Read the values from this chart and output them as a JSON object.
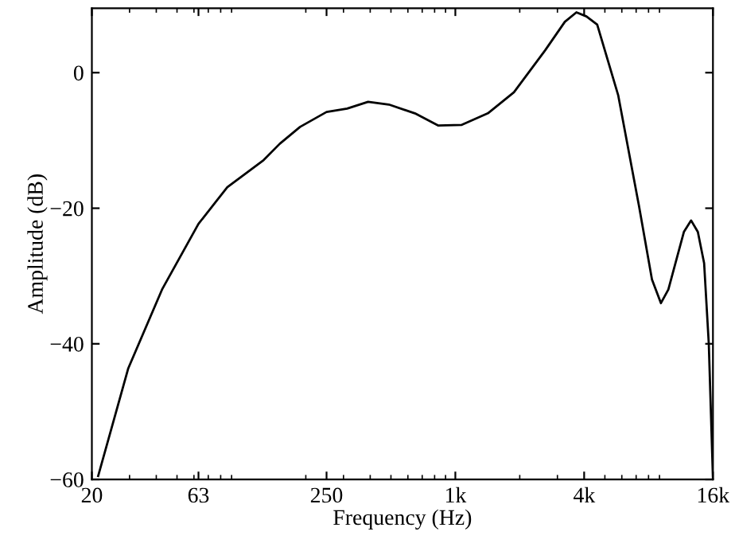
{
  "chart_data": {
    "type": "line",
    "xlabel": "Frequency (Hz)",
    "ylabel": "Amplitude (dB)",
    "log": "x",
    "xlim": [
      20,
      16000
    ],
    "ylim": [
      -60,
      9.5
    ],
    "xticks": [
      20,
      63,
      250,
      {
        "value": 1000,
        "label": "1k"
      },
      {
        "value": 4000,
        "label": "4k"
      },
      {
        "value": 16000,
        "label": "16k"
      }
    ],
    "yticks": [
      -60,
      -40,
      -20,
      0
    ],
    "grid": false,
    "legend": false,
    "marker": "none",
    "line_style": "solid",
    "x": [
      21.4,
      29.6,
      42.7,
      63,
      85.9,
      127,
      151,
      188,
      250,
      312,
      391,
      489,
      647,
      833,
      1072,
      1419,
      1879,
      2630,
      3250,
      3681,
      4100,
      4603,
      5767,
      7211,
      8300,
      9141,
      9900,
      10690,
      11700,
      12650,
      13600,
      14550,
      15300,
      16000
    ],
    "series": [
      {
        "color": "#000000",
        "values": [
          -59.5,
          -43.6,
          -31.9,
          -22.3,
          -16.9,
          -12.9,
          -10.5,
          -8.0,
          -5.8,
          -5.3,
          -4.3,
          -4.7,
          -6.0,
          -7.8,
          -7.7,
          -6.0,
          -2.9,
          3.3,
          7.5,
          8.9,
          8.3,
          7.1,
          -3.3,
          -19.6,
          -30.5,
          -34.0,
          -32.0,
          -28.1,
          -23.5,
          -21.8,
          -23.5,
          -28.1,
          -40.0,
          -59.9
        ]
      }
    ]
  }
}
